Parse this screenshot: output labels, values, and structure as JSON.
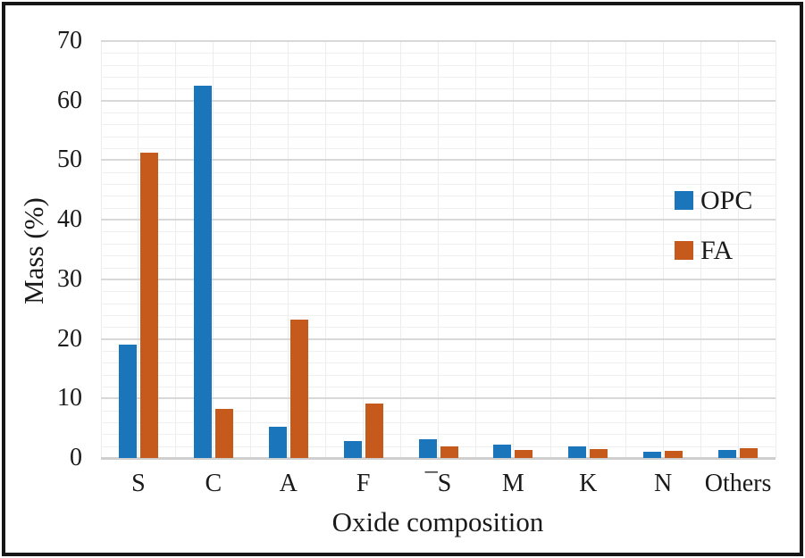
{
  "chart_data": {
    "type": "bar",
    "title": "",
    "xlabel": "Oxide composition",
    "ylabel": "Mass (%)",
    "categories": [
      "S",
      "C",
      "A",
      "F",
      "¯S",
      "M",
      "K",
      "N",
      "Others"
    ],
    "series": [
      {
        "name": "OPC",
        "color": "#1B75BB",
        "values": [
          19.1,
          62.5,
          5.2,
          2.8,
          3.2,
          2.2,
          1.9,
          1.1,
          1.4
        ]
      },
      {
        "name": "FA",
        "color": "#C6591C",
        "values": [
          51.3,
          8.3,
          23.2,
          9.2,
          2.0,
          1.4,
          1.5,
          1.2,
          1.6
        ]
      }
    ],
    "ylim": [
      0,
      70
    ],
    "yticks": [
      0,
      10,
      20,
      30,
      40,
      50,
      60,
      70
    ],
    "grid": {
      "horizontal_major_interval": 10,
      "horizontal_minor_interval": 2,
      "vertical_lines_per_category": 2,
      "major_color": "#d8d8d8",
      "minor_color": "#efefef"
    },
    "legend": {
      "position": "inside-right",
      "entries": [
        {
          "label": "OPC",
          "color": "#1B75BB"
        },
        {
          "label": "FA",
          "color": "#C6591C"
        }
      ]
    },
    "frame_border_color": "#161616",
    "background_color": "#ffffff",
    "text_color": "#1a1a1a"
  }
}
